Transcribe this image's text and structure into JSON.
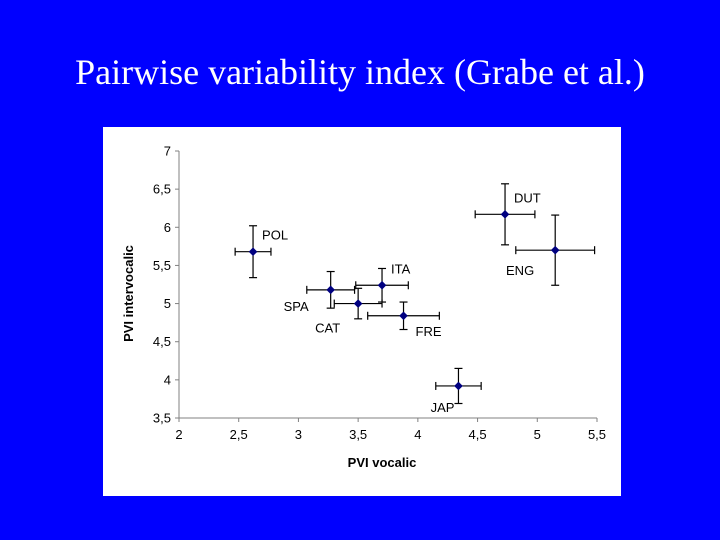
{
  "slide": {
    "title": "Pairwise variability index (Grabe et al.)"
  },
  "chart_data": {
    "type": "scatter",
    "title": "Pairwise variability index (Grabe et al.)",
    "xlabel": "PVI vocalic",
    "ylabel": "PVI intervocalic",
    "xlim": [
      2,
      5.5
    ],
    "ylim": [
      3.5,
      7
    ],
    "xticks": [
      "2",
      "2,5",
      "3",
      "3,5",
      "4",
      "4,5",
      "5",
      "5,5"
    ],
    "yticks": [
      "3,5",
      "4",
      "4,5",
      "5",
      "5,5",
      "6",
      "6,5",
      "7"
    ],
    "xtick_values": [
      2,
      2.5,
      3,
      3.5,
      4,
      4.5,
      5,
      5.5
    ],
    "ytick_values": [
      3.5,
      4,
      4.5,
      5,
      5.5,
      6,
      6.5,
      7
    ],
    "grid": false,
    "legend": "none",
    "marker_color": "#000080",
    "points": [
      {
        "label": "POL",
        "x": 2.62,
        "y": 5.68,
        "xerr": 0.15,
        "yerr": 0.34,
        "label_pos": "upper-right"
      },
      {
        "label": "SPA",
        "x": 3.27,
        "y": 5.18,
        "xerr": 0.2,
        "yerr": 0.24,
        "label_pos": "lower-left"
      },
      {
        "label": "ITA",
        "x": 3.7,
        "y": 5.24,
        "xerr": 0.22,
        "yerr": 0.22,
        "label_pos": "upper-right"
      },
      {
        "label": "CAT",
        "x": 3.5,
        "y": 5.0,
        "xerr": 0.2,
        "yerr": 0.2,
        "label_pos": "lower-left"
      },
      {
        "label": "FRE",
        "x": 3.88,
        "y": 4.84,
        "xerr": 0.3,
        "yerr": 0.18,
        "label_pos": "lower-right"
      },
      {
        "label": "DUT",
        "x": 4.73,
        "y": 6.17,
        "xerr": 0.25,
        "yerr": 0.4,
        "label_pos": "upper-right"
      },
      {
        "label": "ENG",
        "x": 5.15,
        "y": 5.7,
        "xerr": 0.33,
        "yerr": 0.46,
        "label_pos": "lower-left"
      },
      {
        "label": "JAP",
        "x": 4.34,
        "y": 3.92,
        "xerr": 0.19,
        "yerr": 0.23,
        "label_pos": "lower-left"
      }
    ]
  }
}
